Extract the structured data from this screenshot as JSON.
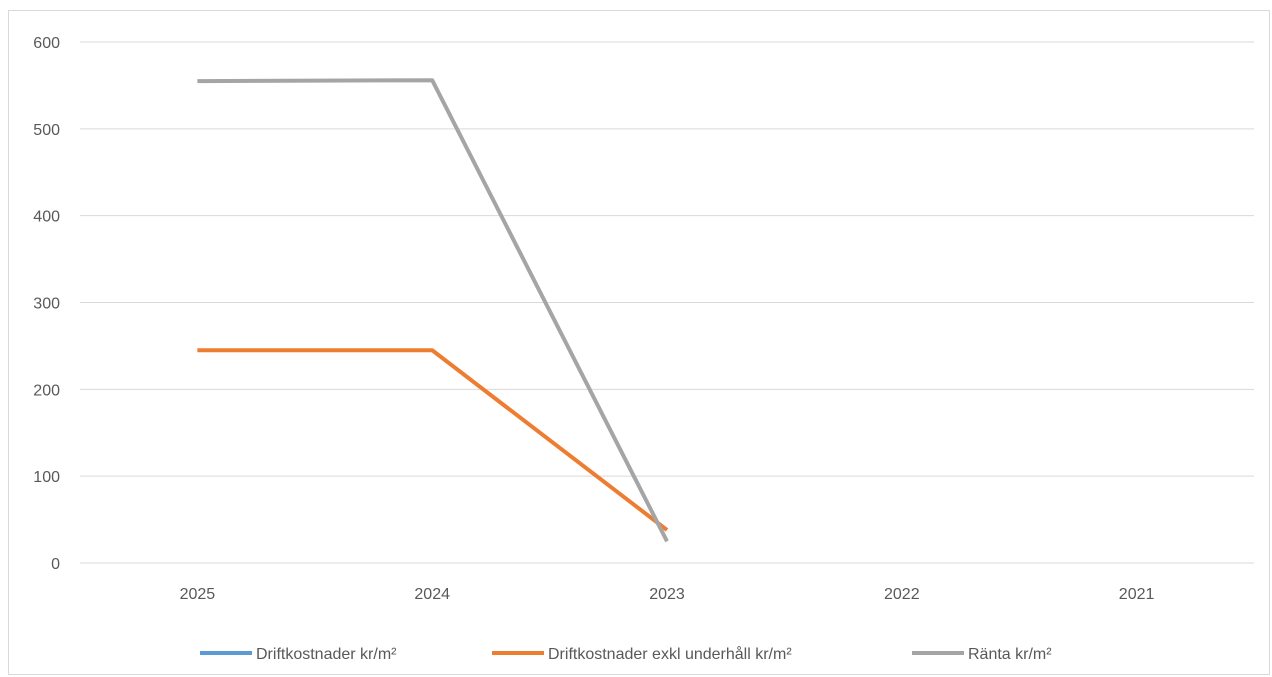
{
  "chart_data": {
    "type": "line",
    "title": "",
    "xlabel": "",
    "ylabel": "",
    "categories": [
      "2025",
      "2024",
      "2023",
      "2022",
      "2021"
    ],
    "ylim": [
      0,
      600
    ],
    "yticks": [
      0,
      100,
      200,
      300,
      400,
      500,
      600
    ],
    "grid": "horizontal",
    "legend_position": "bottom",
    "series": [
      {
        "name": "Driftkostnader kr/m²",
        "color": "#5b9bd5",
        "values": [
          null,
          null,
          null,
          null,
          null
        ]
      },
      {
        "name": "Driftkostnader exkl underhåll kr/m²",
        "color": "#ed7d31",
        "values": [
          245,
          245,
          38,
          null,
          null
        ]
      },
      {
        "name": "Ränta kr/m²",
        "color": "#a5a5a5",
        "values": [
          555,
          556,
          25,
          null,
          null
        ]
      }
    ]
  }
}
